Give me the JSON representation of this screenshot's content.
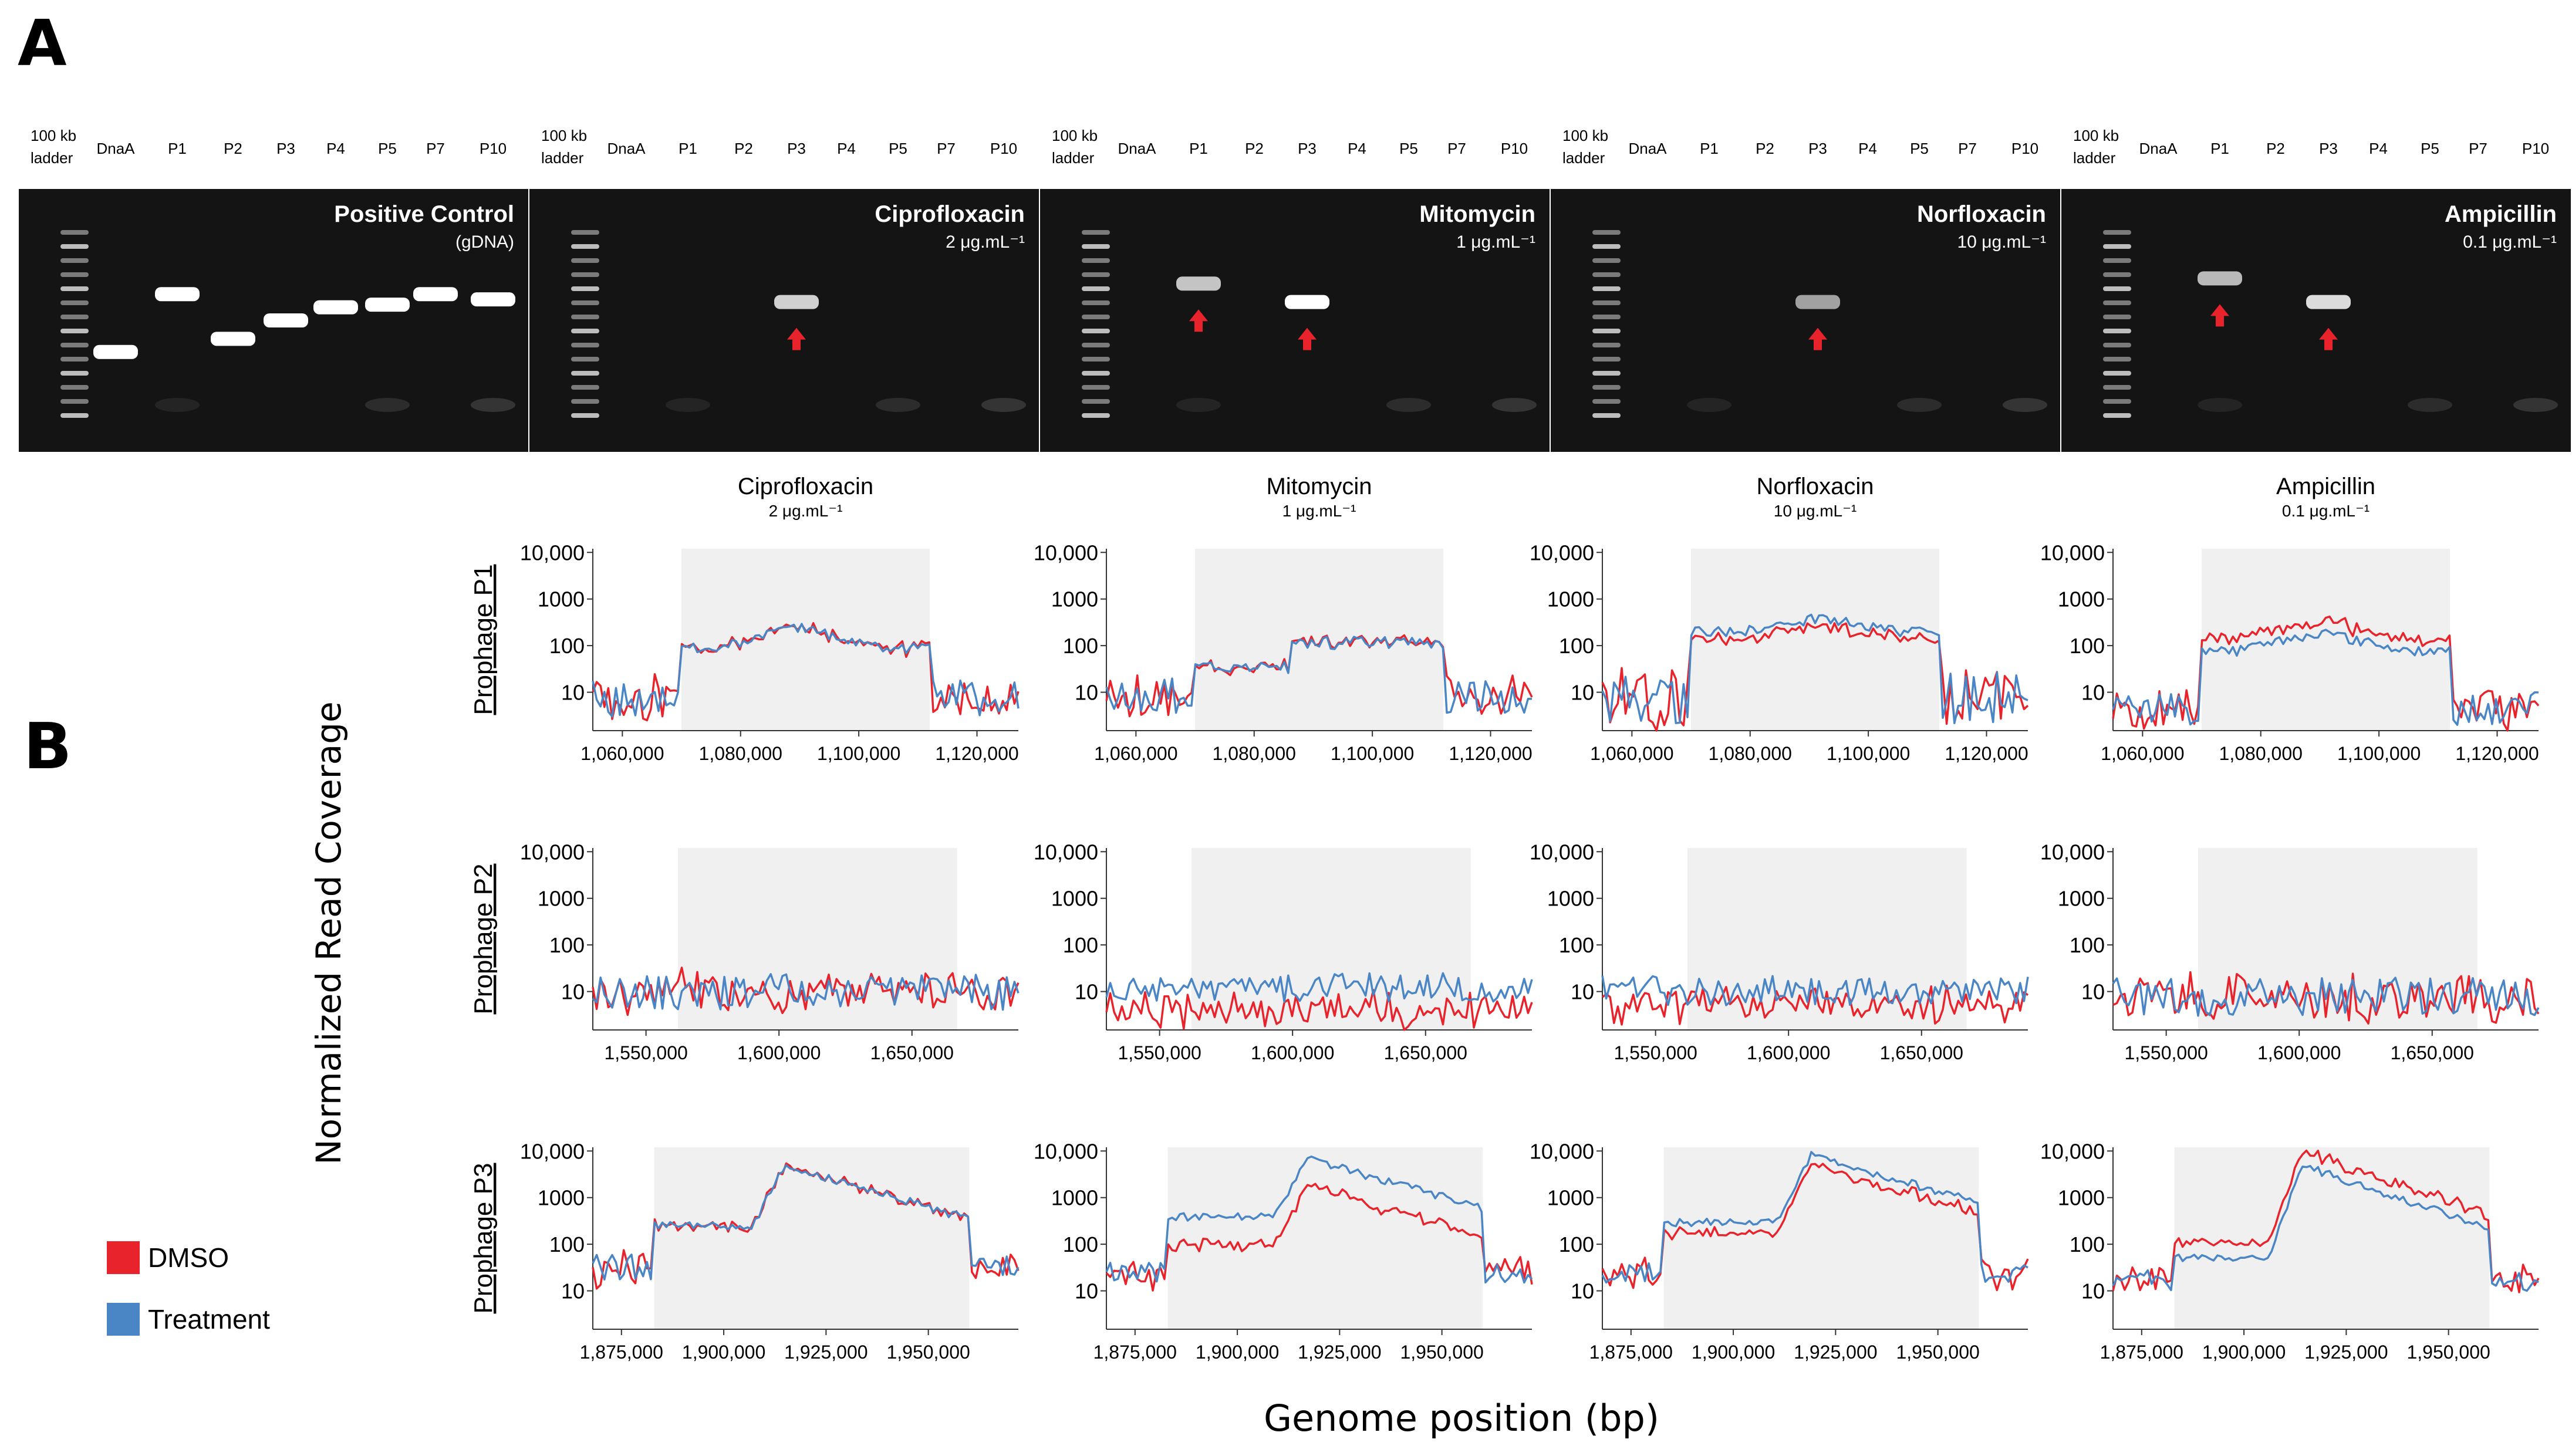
{
  "panel_labels": {
    "a": "A",
    "b": "B"
  },
  "gels": [
    {
      "title": "Positive Control",
      "subtitle": "(gDNA)",
      "lanes": [
        "100 kb ladder",
        "DnaA",
        "P1",
        "P2",
        "P3",
        "P4",
        "P5",
        "P7",
        "P10"
      ],
      "bands": [
        {
          "lane": "DnaA",
          "level": 0.62,
          "intensity": 1.0
        },
        {
          "lane": "P1",
          "level": 0.4,
          "intensity": 1.0
        },
        {
          "lane": "P2",
          "level": 0.57,
          "intensity": 1.0
        },
        {
          "lane": "P3",
          "level": 0.5,
          "intensity": 1.0
        },
        {
          "lane": "P4",
          "level": 0.45,
          "intensity": 1.0
        },
        {
          "lane": "P5",
          "level": 0.44,
          "intensity": 1.0
        },
        {
          "lane": "P7",
          "level": 0.4,
          "intensity": 1.0
        },
        {
          "lane": "P10",
          "level": 0.42,
          "intensity": 1.0
        }
      ],
      "arrows": []
    },
    {
      "title": "Ciprofloxacin",
      "subtitle": "2 μg.mL⁻¹",
      "lanes": [
        "100 kb ladder",
        "DnaA",
        "P1",
        "P2",
        "P3",
        "P4",
        "P5",
        "P7",
        "P10"
      ],
      "bands": [
        {
          "lane": "P3",
          "level": 0.43,
          "intensity": 0.8
        }
      ],
      "arrows": [
        "P3"
      ]
    },
    {
      "title": "Mitomycin",
      "subtitle": "1 μg.mL⁻¹",
      "lanes": [
        "100 kb ladder",
        "DnaA",
        "P1",
        "P2",
        "P3",
        "P4",
        "P5",
        "P7",
        "P10"
      ],
      "bands": [
        {
          "lane": "P1",
          "level": 0.36,
          "intensity": 0.75
        },
        {
          "lane": "P3",
          "level": 0.43,
          "intensity": 1.0
        }
      ],
      "arrows": [
        "P1",
        "P3"
      ]
    },
    {
      "title": "Norfloxacin",
      "subtitle": "10 μg.mL⁻¹",
      "lanes": [
        "100 kb ladder",
        "DnaA",
        "P1",
        "P2",
        "P3",
        "P4",
        "P5",
        "P7",
        "P10"
      ],
      "bands": [
        {
          "lane": "P3",
          "level": 0.43,
          "intensity": 0.6
        }
      ],
      "arrows": [
        "P3"
      ]
    },
    {
      "title": "Ampicillin",
      "subtitle": "0.1 μg.mL⁻¹",
      "lanes": [
        "100 kb ladder",
        "DnaA",
        "P1",
        "P2",
        "P3",
        "P4",
        "P5",
        "P7",
        "P10"
      ],
      "bands": [
        {
          "lane": "P1",
          "level": 0.34,
          "intensity": 0.7
        },
        {
          "lane": "P3",
          "level": 0.43,
          "intensity": 0.85
        }
      ],
      "arrows": [
        "P1",
        "P3"
      ]
    }
  ],
  "treatments": [
    {
      "name": "Ciprofloxacin",
      "conc": "2 μg.mL⁻¹"
    },
    {
      "name": "Mitomycin",
      "conc": "1 μg.mL⁻¹"
    },
    {
      "name": "Norfloxacin",
      "conc": "10 μg.mL⁻¹"
    },
    {
      "name": "Ampicillin",
      "conc": "0.1 μg.mL⁻¹"
    }
  ],
  "row_labels": [
    "Prophage P1",
    "Prophage P2",
    "Prophage P3"
  ],
  "y_axis_title": "Normalized Read Coverage",
  "x_axis_title": "Genome position (bp)",
  "legend": [
    {
      "label": "DMSO",
      "color": "#e8232b"
    },
    {
      "label": "Treatment",
      "color": "#4a86c5"
    }
  ],
  "colors": {
    "dmso": "#e8232b",
    "treatment": "#4a86c5",
    "region": "#f0f0f0",
    "gel": "#141414"
  },
  "chart_data": [
    {
      "type": "line",
      "prophage": "Prophage P1",
      "treatment": "Ciprofloxacin",
      "xlim": [
        1055000,
        1127000
      ],
      "y_scale": "log",
      "yticks": [
        10,
        100,
        1000,
        10000
      ],
      "ytick_labels": [
        "10",
        "100",
        "1000",
        "10,000"
      ],
      "xticks": [
        1060000,
        1080000,
        1100000,
        1120000
      ],
      "xtick_labels": [
        "1,060,000",
        "1,080,000",
        "1,100,000",
        "1,120,000"
      ],
      "shaded_region": [
        1070000,
        1112000
      ],
      "profile": {
        "kind": "plateau",
        "bg": [
          3,
          20
        ],
        "lvl": 90,
        "peak": {
          "x": 1090000,
          "y": 250
        },
        "dmsoFactor": 1.0
      }
    },
    {
      "type": "line",
      "prophage": "Prophage P1",
      "treatment": "Mitomycin",
      "xlim": [
        1055000,
        1127000
      ],
      "y_scale": "log",
      "yticks": [
        10,
        100,
        1000,
        10000
      ],
      "ytick_labels": [
        "10",
        "100",
        "1000",
        "10,000"
      ],
      "xticks": [
        1060000,
        1080000,
        1100000,
        1120000
      ],
      "xtick_labels": [
        "1,060,000",
        "1,080,000",
        "1,100,000",
        "1,120,000"
      ],
      "shaded_region": [
        1070000,
        1112000
      ],
      "profile": {
        "kind": "step",
        "bg": [
          3,
          20
        ],
        "lvl1": 35,
        "lvl2": 120,
        "split": 1086000,
        "dmsoFactor": 1.0
      }
    },
    {
      "type": "line",
      "prophage": "Prophage P1",
      "treatment": "Norfloxacin",
      "xlim": [
        1055000,
        1127000
      ],
      "y_scale": "log",
      "yticks": [
        10,
        100,
        1000,
        10000
      ],
      "ytick_labels": [
        "10",
        "100",
        "1000",
        "10,000"
      ],
      "xticks": [
        1060000,
        1080000,
        1100000,
        1120000
      ],
      "xtick_labels": [
        "1,060,000",
        "1,080,000",
        "1,100,000",
        "1,120,000"
      ],
      "shaded_region": [
        1070000,
        1112000
      ],
      "profile": {
        "kind": "plateau",
        "bg": [
          2,
          30
        ],
        "lvl": 200,
        "peak": {
          "x": 1092000,
          "y": 400
        },
        "dmsoFactor": 0.7
      }
    },
    {
      "type": "line",
      "prophage": "Prophage P1",
      "treatment": "Ampicillin",
      "xlim": [
        1055000,
        1127000
      ],
      "y_scale": "log",
      "yticks": [
        10,
        100,
        1000,
        10000
      ],
      "ytick_labels": [
        "10",
        "100",
        "1000",
        "10,000"
      ],
      "xticks": [
        1060000,
        1080000,
        1100000,
        1120000
      ],
      "xtick_labels": [
        "1,060,000",
        "1,080,000",
        "1,100,000",
        "1,120,000"
      ],
      "shaded_region": [
        1070000,
        1112000
      ],
      "profile": {
        "kind": "plateau",
        "bg": [
          2,
          10
        ],
        "lvl": 80,
        "peak": {
          "x": 1090000,
          "y": 200
        },
        "dmsoFactor": 1.8
      }
    },
    {
      "type": "line",
      "prophage": "Prophage P2",
      "treatment": "Ciprofloxacin",
      "xlim": [
        1530000,
        1690000
      ],
      "y_scale": "log",
      "yticks": [
        10,
        100,
        1000,
        10000
      ],
      "ytick_labels": [
        "10",
        "100",
        "1000",
        "10,000"
      ],
      "xticks": [
        1550000,
        1600000,
        1650000
      ],
      "xtick_labels": [
        "1,550,000",
        "1,600,000",
        "1,650,000"
      ],
      "shaded_region": [
        1562000,
        1667000
      ],
      "profile": {
        "kind": "noise",
        "bg": [
          4,
          25
        ],
        "dmsoFactor": 1.0
      }
    },
    {
      "type": "line",
      "prophage": "Prophage P2",
      "treatment": "Mitomycin",
      "xlim": [
        1530000,
        1690000
      ],
      "y_scale": "log",
      "yticks": [
        10,
        100,
        1000,
        10000
      ],
      "ytick_labels": [
        "10",
        "100",
        "1000",
        "10,000"
      ],
      "xticks": [
        1550000,
        1600000,
        1650000
      ],
      "xtick_labels": [
        "1,550,000",
        "1,600,000",
        "1,650,000"
      ],
      "shaded_region": [
        1562000,
        1667000
      ],
      "profile": {
        "kind": "noise",
        "bg": [
          6,
          25
        ],
        "dmsoFactor": 0.35
      }
    },
    {
      "type": "line",
      "prophage": "Prophage P2",
      "treatment": "Norfloxacin",
      "xlim": [
        1530000,
        1690000
      ],
      "y_scale": "log",
      "yticks": [
        10,
        100,
        1000,
        10000
      ],
      "ytick_labels": [
        "10",
        "100",
        "1000",
        "10,000"
      ],
      "xticks": [
        1550000,
        1600000,
        1650000
      ],
      "xtick_labels": [
        "1,550,000",
        "1,600,000",
        "1,650,000"
      ],
      "shaded_region": [
        1562000,
        1667000
      ],
      "profile": {
        "kind": "noise",
        "bg": [
          5,
          22
        ],
        "dmsoFactor": 0.5
      }
    },
    {
      "type": "line",
      "prophage": "Prophage P2",
      "treatment": "Ampicillin",
      "xlim": [
        1530000,
        1690000
      ],
      "y_scale": "log",
      "yticks": [
        10,
        100,
        1000,
        10000
      ],
      "ytick_labels": [
        "10",
        "100",
        "1000",
        "10,000"
      ],
      "xticks": [
        1550000,
        1600000,
        1650000
      ],
      "xtick_labels": [
        "1,550,000",
        "1,600,000",
        "1,650,000"
      ],
      "shaded_region": [
        1562000,
        1667000
      ],
      "profile": {
        "kind": "noise",
        "bg": [
          3,
          20
        ],
        "dmsoFactor": 1.0
      }
    },
    {
      "type": "line",
      "prophage": "Prophage P3",
      "treatment": "Ciprofloxacin",
      "xlim": [
        1868000,
        1972000
      ],
      "y_scale": "log",
      "yticks": [
        10,
        100,
        1000,
        10000
      ],
      "ytick_labels": [
        "10",
        "100",
        "1000",
        "10,000"
      ],
      "xticks": [
        1875000,
        1900000,
        1925000,
        1950000
      ],
      "xtick_labels": [
        "1,875,000",
        "1,900,000",
        "1,925,000",
        "1,950,000"
      ],
      "shaded_region": [
        1883000,
        1960000
      ],
      "profile": {
        "kind": "peak",
        "bg": [
          15,
          60
        ],
        "lvl": 250,
        "peak": {
          "x": 1915000,
          "y": 5000
        },
        "end": 350,
        "dmsoFactor": 1.0
      }
    },
    {
      "type": "line",
      "prophage": "Prophage P3",
      "treatment": "Mitomycin",
      "xlim": [
        1868000,
        1972000
      ],
      "y_scale": "log",
      "yticks": [
        10,
        100,
        1000,
        10000
      ],
      "ytick_labels": [
        "10",
        "100",
        "1000",
        "10,000"
      ],
      "xticks": [
        1875000,
        1900000,
        1925000,
        1950000
      ],
      "xtick_labels": [
        "1,875,000",
        "1,900,000",
        "1,925,000",
        "1,950,000"
      ],
      "shaded_region": [
        1883000,
        1960000
      ],
      "profile": {
        "kind": "peak",
        "bg": [
          15,
          40
        ],
        "lvl": 400,
        "peak": {
          "x": 1917000,
          "y": 7000
        },
        "end": 600,
        "dmsoFactor": 0.25
      }
    },
    {
      "type": "line",
      "prophage": "Prophage P3",
      "treatment": "Norfloxacin",
      "xlim": [
        1868000,
        1972000
      ],
      "y_scale": "log",
      "yticks": [
        10,
        100,
        1000,
        10000
      ],
      "ytick_labels": [
        "10",
        "100",
        "1000",
        "10,000"
      ],
      "xticks": [
        1875000,
        1900000,
        1925000,
        1950000
      ],
      "xtick_labels": [
        "1,875,000",
        "1,900,000",
        "1,925,000",
        "1,950,000"
      ],
      "shaded_region": [
        1883000,
        1960000
      ],
      "profile": {
        "kind": "peak",
        "bg": [
          15,
          40
        ],
        "lvl": 300,
        "peak": {
          "x": 1919000,
          "y": 8000
        },
        "end": 800,
        "dmsoFactor": 0.6
      }
    },
    {
      "type": "line",
      "prophage": "Prophage P3",
      "treatment": "Ampicillin",
      "xlim": [
        1868000,
        1972000
      ],
      "y_scale": "log",
      "yticks": [
        10,
        100,
        1000,
        10000
      ],
      "ytick_labels": [
        "10",
        "100",
        "1000",
        "10,000"
      ],
      "xticks": [
        1875000,
        1900000,
        1925000,
        1950000
      ],
      "xtick_labels": [
        "1,875,000",
        "1,900,000",
        "1,925,000",
        "1,950,000"
      ],
      "shaded_region": [
        1883000,
        1960000
      ],
      "profile": {
        "kind": "peak",
        "bg": [
          10,
          30
        ],
        "lvl": 50,
        "peak": {
          "x": 1914000,
          "y": 5000
        },
        "end": 220,
        "dmsoFactor": 2.0
      }
    }
  ]
}
